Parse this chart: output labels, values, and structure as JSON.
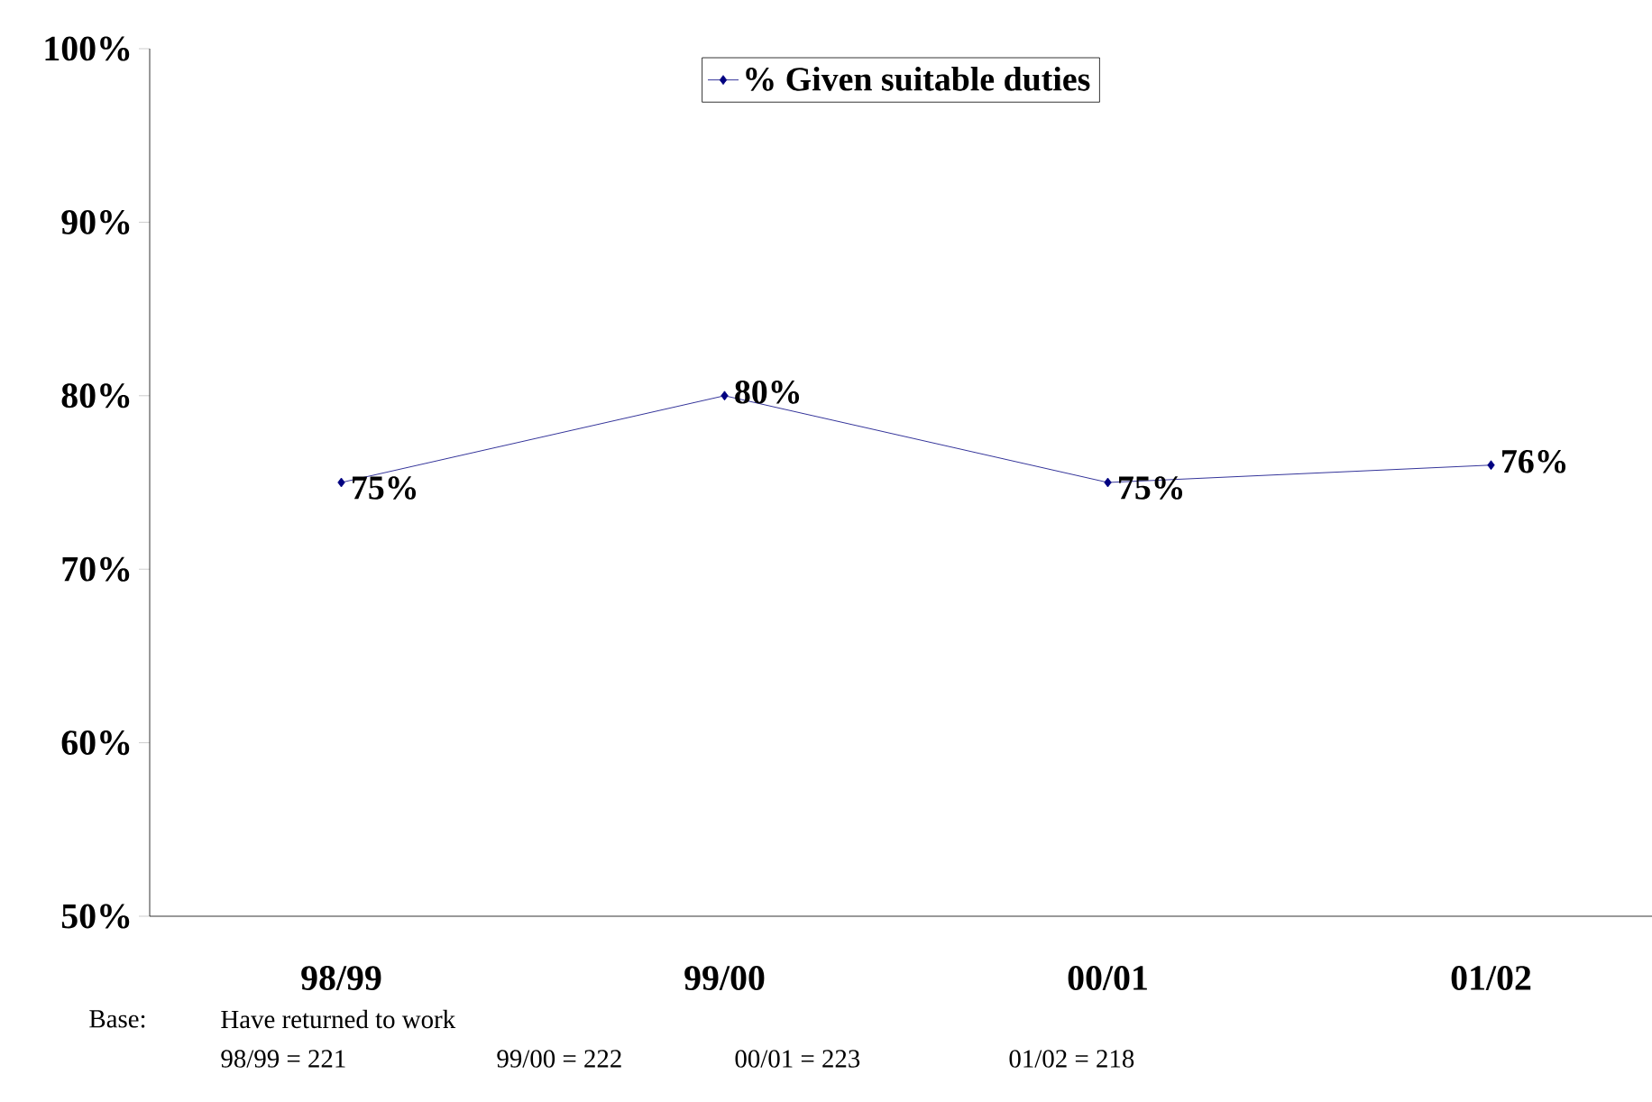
{
  "chart_data": {
    "type": "line",
    "categories": [
      "98/99",
      "99/00",
      "00/01",
      "01/02"
    ],
    "series": [
      {
        "name": "% Given suitable duties",
        "color": "#000080",
        "values": [
          75,
          80,
          75,
          76
        ],
        "value_labels": [
          "75%",
          "80%",
          "75%",
          "76%"
        ]
      }
    ],
    "ylim": [
      50,
      100
    ],
    "yticks": [
      {
        "value": 50,
        "label": "50%"
      },
      {
        "value": 60,
        "label": "60%"
      },
      {
        "value": 70,
        "label": "70%"
      },
      {
        "value": 80,
        "label": "80%"
      },
      {
        "value": 90,
        "label": "90%"
      },
      {
        "value": 100,
        "label": "100%"
      }
    ],
    "marker": "diamond",
    "line_style": "solid",
    "legend": "top",
    "grid": false,
    "annotations": [
      "Base:",
      "Have returned to work",
      "98/99 = 221",
      "99/00 = 222",
      "00/01 = 223",
      "01/02 = 218"
    ]
  }
}
